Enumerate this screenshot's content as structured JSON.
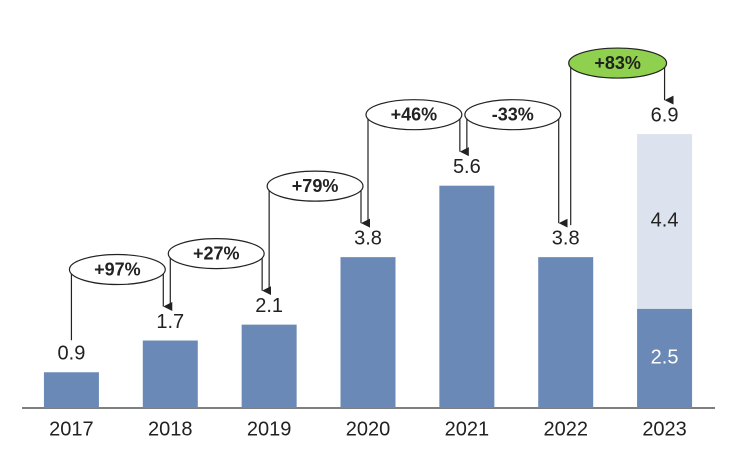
{
  "chart_data": {
    "type": "bar",
    "stacked": true,
    "categories": [
      "2017",
      "2018",
      "2019",
      "2020",
      "2021",
      "2022",
      "2023"
    ],
    "series": [
      {
        "color": "#6a89b7",
        "values": [
          0.9,
          1.7,
          2.1,
          3.8,
          5.6,
          3.8,
          2.5
        ]
      },
      {
        "color": "#dce3ef",
        "values": [
          null,
          null,
          null,
          null,
          null,
          null,
          4.4
        ]
      }
    ],
    "totals": [
      null,
      null,
      null,
      null,
      null,
      null,
      6.9
    ],
    "growth_labels": [
      "+97%",
      "+27%",
      "+79%",
      "+46%",
      "-33%",
      "+83%"
    ],
    "growth_colors": [
      "#ffffff",
      "#ffffff",
      "#ffffff",
      "#ffffff",
      "#ffffff",
      "#8fd14f"
    ],
    "ylim": [
      0,
      10
    ]
  }
}
